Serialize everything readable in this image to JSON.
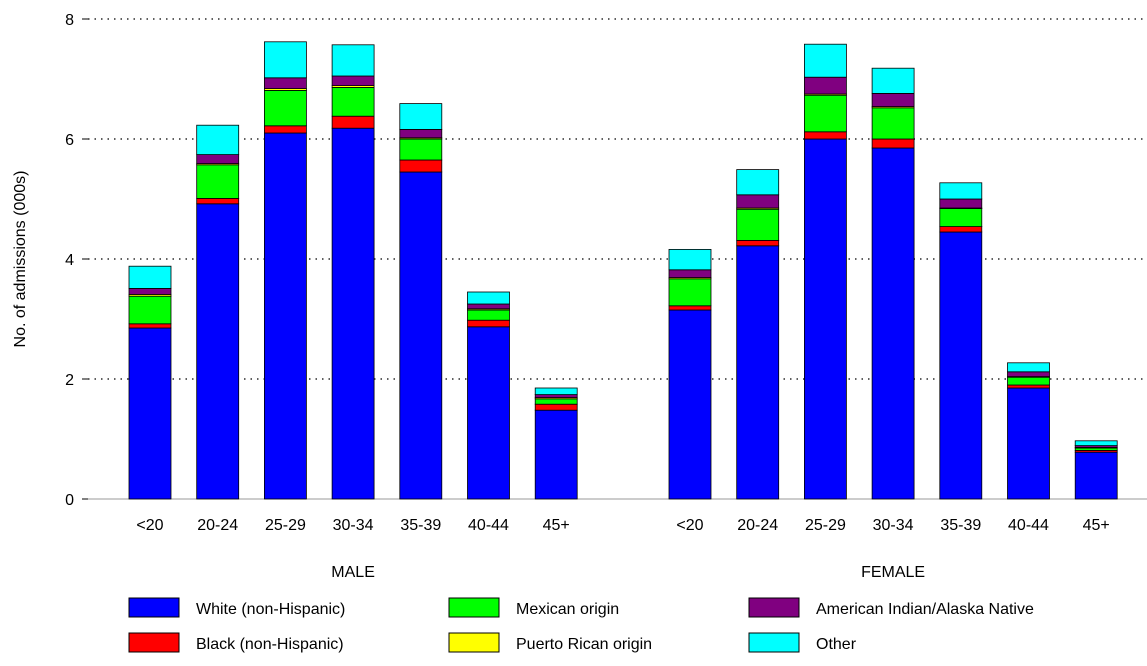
{
  "chart_data": {
    "type": "bar",
    "stacked": true,
    "ylabel": "No. of admissions (000s)",
    "ylim": [
      0,
      8
    ],
    "yticks": [
      0,
      2,
      4,
      6,
      8
    ],
    "grid": "horizontal-dotted",
    "legend_position": "bottom",
    "categories": [
      "<20",
      "20-24",
      "25-29",
      "30-34",
      "35-39",
      "40-44",
      "45+"
    ],
    "groups": [
      {
        "label": "MALE",
        "series": [
          {
            "name": "White (non-Hispanic)",
            "values": [
              2.85,
              4.92,
              6.1,
              6.18,
              5.45,
              2.87,
              1.48
            ]
          },
          {
            "name": "Black (non-Hispanic)",
            "values": [
              0.07,
              0.09,
              0.12,
              0.2,
              0.2,
              0.11,
              0.1
            ]
          },
          {
            "name": "Mexican origin",
            "values": [
              0.46,
              0.56,
              0.59,
              0.48,
              0.35,
              0.17,
              0.09
            ]
          },
          {
            "name": "Puerto Rican origin",
            "values": [
              0.03,
              0.02,
              0.03,
              0.03,
              0.02,
              0.02,
              0.02
            ]
          },
          {
            "name": "American Indian/Alaska Native",
            "values": [
              0.1,
              0.15,
              0.18,
              0.16,
              0.14,
              0.08,
              0.05
            ]
          },
          {
            "name": "Other",
            "values": [
              0.37,
              0.49,
              0.6,
              0.52,
              0.43,
              0.2,
              0.11
            ]
          }
        ]
      },
      {
        "label": "FEMALE",
        "series": [
          {
            "name": "White (non-Hispanic)",
            "values": [
              3.15,
              4.22,
              6.0,
              5.85,
              4.45,
              1.85,
              0.78
            ]
          },
          {
            "name": "Black (non-Hispanic)",
            "values": [
              0.07,
              0.09,
              0.12,
              0.15,
              0.09,
              0.05,
              0.03
            ]
          },
          {
            "name": "Mexican origin",
            "values": [
              0.45,
              0.52,
              0.61,
              0.52,
              0.3,
              0.13,
              0.04
            ]
          },
          {
            "name": "Puerto Rican origin",
            "values": [
              0.02,
              0.02,
              0.02,
              0.02,
              0.01,
              0.01,
              0.01
            ]
          },
          {
            "name": "American Indian/Alaska Native",
            "values": [
              0.13,
              0.22,
              0.28,
              0.22,
              0.15,
              0.08,
              0.03
            ]
          },
          {
            "name": "Other",
            "values": [
              0.34,
              0.42,
              0.55,
              0.42,
              0.27,
              0.15,
              0.08
            ]
          }
        ]
      }
    ],
    "colors": {
      "White (non-Hispanic)": "#0000ff",
      "Black (non-Hispanic)": "#ff0000",
      "Mexican origin": "#00ff00",
      "Puerto Rican origin": "#ffff00",
      "American Indian/Alaska Native": "#800080",
      "Other": "#00ffff"
    },
    "legend": [
      "White (non-Hispanic)",
      "Mexican origin",
      "American Indian/Alaska Native",
      "Black (non-Hispanic)",
      "Puerto Rican origin",
      "Other"
    ]
  }
}
